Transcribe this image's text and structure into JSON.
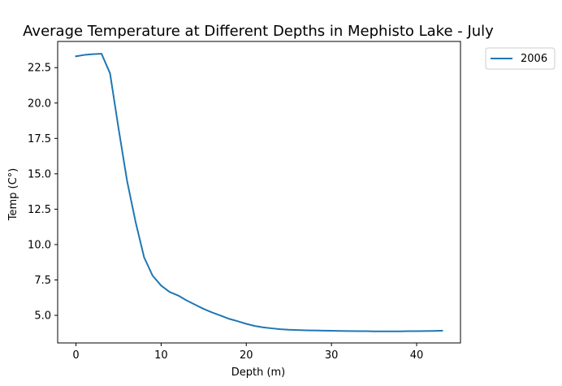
{
  "chart_data": {
    "type": "line",
    "title": "Average Temperature at Different Depths in Mephisto Lake - July",
    "xlabel": "Depth (m)",
    "ylabel": "Temp (C°)",
    "xlim": [
      -2.15,
      45.15
    ],
    "ylim": [
      3.05,
      24.35
    ],
    "xticks": [
      0,
      10,
      20,
      30,
      40
    ],
    "xtick_labels": [
      "0",
      "10",
      "20",
      "30",
      "40"
    ],
    "yticks": [
      5.0,
      7.5,
      10.0,
      12.5,
      15.0,
      17.5,
      20.0,
      22.5
    ],
    "ytick_labels": [
      "5.0",
      "7.5",
      "10.0",
      "12.5",
      "15.0",
      "17.5",
      "20.0",
      "22.5"
    ],
    "grid": false,
    "legend_position": "outside-top-right",
    "series": [
      {
        "name": "2006",
        "color": "#1f77b4",
        "x": [
          0,
          1,
          2,
          3,
          4,
          5,
          6,
          7,
          8,
          9,
          10,
          11,
          12,
          13,
          14,
          15,
          16,
          17,
          18,
          19,
          20,
          21,
          22,
          23,
          24,
          25,
          26,
          27,
          28,
          29,
          30,
          31,
          32,
          33,
          34,
          35,
          36,
          37,
          38,
          39,
          40,
          41,
          42,
          43
        ],
        "y": [
          23.3,
          23.4,
          23.45,
          23.48,
          22.1,
          18.2,
          14.5,
          11.6,
          9.1,
          7.8,
          7.1,
          6.65,
          6.4,
          6.05,
          5.75,
          5.45,
          5.2,
          4.98,
          4.75,
          4.58,
          4.4,
          4.25,
          4.15,
          4.08,
          4.02,
          3.98,
          3.96,
          3.94,
          3.93,
          3.92,
          3.91,
          3.9,
          3.89,
          3.88,
          3.88,
          3.87,
          3.87,
          3.87,
          3.87,
          3.88,
          3.88,
          3.89,
          3.9,
          3.92
        ]
      }
    ]
  }
}
